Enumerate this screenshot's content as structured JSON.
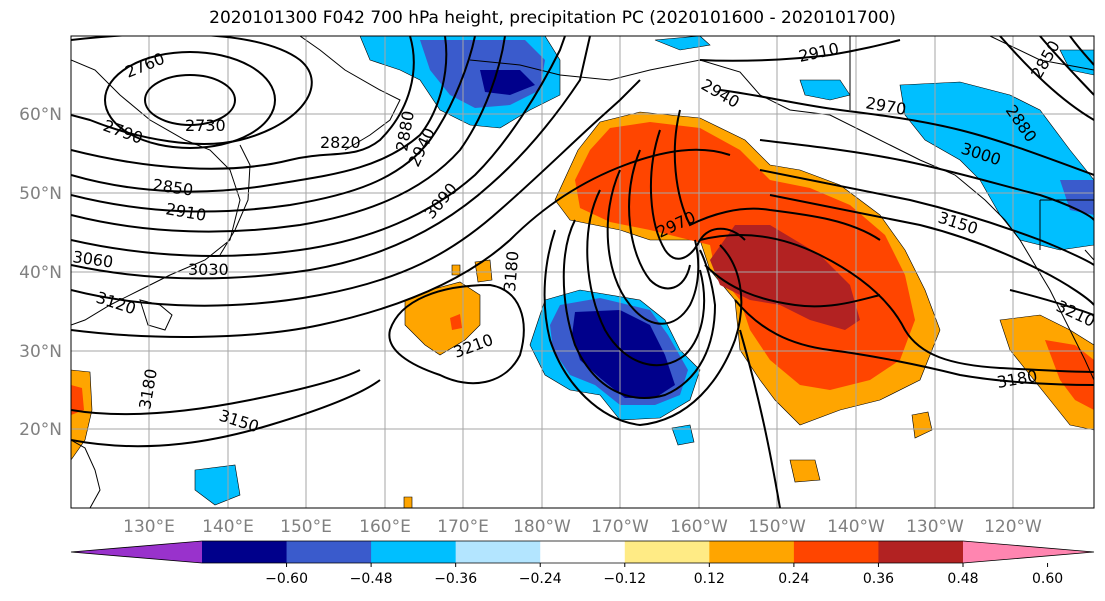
{
  "title": "2020101300 F042 700 hPa height, precipitation PC (2020101600 - 2020101700)",
  "lat_labels": [
    "60°N",
    "50°N",
    "40°N",
    "30°N",
    "20°N"
  ],
  "lon_labels": [
    "130°E",
    "140°E",
    "150°E",
    "160°E",
    "170°E",
    "180°W",
    "170°W",
    "160°W",
    "150°W",
    "140°W",
    "130°W",
    "120°W"
  ],
  "contour_labels": [
    "2760",
    "2730",
    "2790",
    "2820",
    "2850",
    "2910",
    "3030",
    "3060",
    "3120",
    "3180",
    "3150",
    "3090",
    "2940",
    "2880",
    "3180",
    "3210",
    "2970",
    "2910",
    "2940",
    "2970",
    "3000",
    "3150",
    "3210",
    "3180",
    "2880",
    "2850"
  ],
  "colorbar": {
    "tick_labels": [
      "−0.60",
      "−0.48",
      "−0.36",
      "−0.24",
      "−0.12",
      "0.12",
      "0.24",
      "0.36",
      "0.48",
      "0.60"
    ],
    "colors": [
      "#9932cc",
      "#00008b",
      "#3a5bcc",
      "#00bfff",
      "#b3e5ff",
      "#ffffff",
      "#ffeb85",
      "#ffa500",
      "#ff4500",
      "#b22222",
      "#ff85b0"
    ]
  },
  "colors": {
    "grid": "#a6a6a6",
    "label_gray": "#808080",
    "contour": "#000000"
  }
}
